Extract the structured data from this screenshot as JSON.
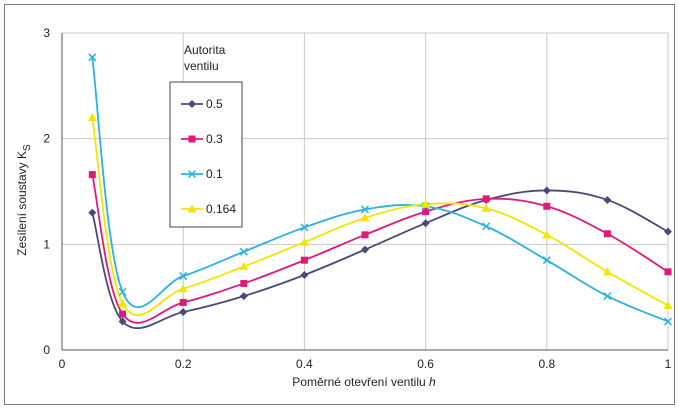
{
  "chart_data": {
    "type": "line",
    "xlabel": "Poměrné otevření ventilu",
    "xlabel_var": "h",
    "ylabel": "Zesílení soustavy K",
    "ylabel_sub": "S",
    "xlim": [
      0,
      1
    ],
    "ylim": [
      0,
      3
    ],
    "x_ticks": [
      "0",
      "0.2",
      "0.4",
      "0.6",
      "0.8",
      "1"
    ],
    "y_ticks": [
      "0",
      "1",
      "2",
      "3"
    ],
    "grid": true,
    "legend_title_line1": "Autorita",
    "legend_title_line2": "ventilu",
    "legend_position": "left-center",
    "x": [
      0.05,
      0.1,
      0.2,
      0.3,
      0.4,
      0.5,
      0.6,
      0.7,
      0.8,
      0.9,
      1.0
    ],
    "series": [
      {
        "name": "0.5",
        "color": "#4a4a7a",
        "marker": "diamond",
        "values": [
          1.3,
          0.27,
          0.36,
          0.51,
          0.71,
          0.95,
          1.2,
          1.42,
          1.51,
          1.42,
          1.12
        ]
      },
      {
        "name": "0.3",
        "color": "#e0197a",
        "marker": "square",
        "values": [
          1.66,
          0.34,
          0.45,
          0.63,
          0.85,
          1.09,
          1.31,
          1.43,
          1.36,
          1.1,
          0.74
        ]
      },
      {
        "name": "0.1",
        "color": "#2ab2e0",
        "marker": "cross",
        "values": [
          2.77,
          0.55,
          0.7,
          0.93,
          1.16,
          1.33,
          1.36,
          1.17,
          0.85,
          0.51,
          0.27
        ]
      },
      {
        "name": "0.164",
        "color": "#f2e600",
        "marker": "triangle",
        "values": [
          2.2,
          0.44,
          0.58,
          0.79,
          1.02,
          1.25,
          1.38,
          1.34,
          1.09,
          0.74,
          0.42
        ]
      }
    ]
  }
}
